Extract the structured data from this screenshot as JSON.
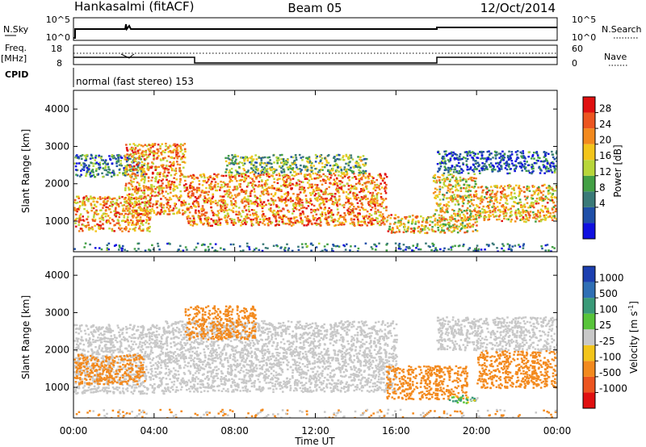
{
  "header": {
    "station": "Hankasalmi (fitACF)",
    "beam": "Beam 05",
    "date": "12/Oct/2014"
  },
  "panels": {
    "nsky": {
      "left_label": "N.Sky",
      "left_ticks": [
        "10^5",
        "10^0"
      ],
      "right_ticks": [
        "10^5",
        "10^0"
      ],
      "right_label": "N.Search"
    },
    "freq": {
      "left_label_1": "Freq.",
      "left_label_2": "[MHz]",
      "left_ticks": [
        "18",
        "8"
      ],
      "right_ticks": [
        "60",
        "0"
      ],
      "right_label": "Nave"
    },
    "cpid": {
      "label": "CPID",
      "value": "normal (fast stereo) 153"
    }
  },
  "axes": {
    "ylabel": "Slant Range [km]",
    "xlabel": "Time UT",
    "yticks": [
      "4000",
      "3000",
      "2000",
      "1000"
    ],
    "xticks": [
      "00:00",
      "04:00",
      "08:00",
      "12:00",
      "16:00",
      "20:00",
      "00:00"
    ]
  },
  "colors": {
    "power": [
      "#1010e0",
      "#1f4fa8",
      "#3a7a78",
      "#43a045",
      "#b8d63a",
      "#f3c51b",
      "#f38a1e",
      "#ec5520",
      "#e01010"
    ],
    "velocity": [
      "#1c3fb0",
      "#2f6fb5",
      "#3a9a78",
      "#58c43a",
      "#c8c8c8",
      "#f3c51b",
      "#f38a1e",
      "#ec5520",
      "#e01010"
    ],
    "ground": "#c8c8c8"
  },
  "colorbars": {
    "power": {
      "label": "Power [dB]",
      "ticks": [
        "28",
        "24",
        "20",
        "16",
        "12",
        "8",
        "4"
      ]
    },
    "velocity": {
      "label": "Velocity",
      "unit": "[m s",
      "unit_exp": "-1",
      "unit_close": "]",
      "ticks": [
        "1000",
        "500",
        "100",
        "25",
        "-25",
        "-100",
        "-500",
        "-1000"
      ]
    }
  },
  "chart_data": [
    {
      "type": "heatmap",
      "name": "power",
      "x_range_hours": [
        0,
        24
      ],
      "y_range_km": [
        180,
        4500
      ],
      "colorscale_ticks_db": [
        4,
        8,
        12,
        16,
        20,
        24,
        28
      ],
      "echo_regions": [
        {
          "start_h": 0.0,
          "end_h": 3.8,
          "low_km": 750,
          "high_km": 1700,
          "value_db": 24
        },
        {
          "start_h": 0.0,
          "end_h": 3.5,
          "low_km": 2200,
          "high_km": 2800,
          "value_db": 10
        },
        {
          "start_h": 2.5,
          "end_h": 5.5,
          "low_km": 1200,
          "high_km": 3100,
          "value_db": 24
        },
        {
          "start_h": 5.5,
          "end_h": 15.5,
          "low_km": 900,
          "high_km": 2300,
          "value_db": 25
        },
        {
          "start_h": 7.5,
          "end_h": 14.5,
          "low_km": 2300,
          "high_km": 2800,
          "value_db": 15
        },
        {
          "start_h": 15.5,
          "end_h": 17.8,
          "low_km": 700,
          "high_km": 1200,
          "value_db": 22
        },
        {
          "start_h": 17.8,
          "end_h": 20.0,
          "low_km": 700,
          "high_km": 2300,
          "value_db": 20
        },
        {
          "start_h": 20.0,
          "end_h": 24.0,
          "low_km": 1000,
          "high_km": 2000,
          "value_db": 22
        },
        {
          "start_h": 18.0,
          "end_h": 24.0,
          "low_km": 2300,
          "high_km": 2900,
          "value_db": 8
        }
      ]
    },
    {
      "type": "heatmap",
      "name": "velocity",
      "x_range_hours": [
        0,
        24
      ],
      "y_range_km": [
        180,
        4500
      ],
      "colorscale_ticks_ms": [
        1000,
        500,
        100,
        25,
        -25,
        -100,
        -500,
        -1000
      ],
      "echo_regions": [
        {
          "start_h": 0.0,
          "end_h": 4.5,
          "low_km": 850,
          "high_km": 2700,
          "value": "ground"
        },
        {
          "start_h": 0.0,
          "end_h": 3.5,
          "low_km": 1100,
          "high_km": 1900,
          "value_ms": -300
        },
        {
          "start_h": 4.5,
          "end_h": 16.0,
          "low_km": 900,
          "high_km": 2800,
          "value": "ground"
        },
        {
          "start_h": 5.5,
          "end_h": 9.0,
          "low_km": 2300,
          "high_km": 3200,
          "value_ms": -300
        },
        {
          "start_h": 15.5,
          "end_h": 19.5,
          "low_km": 700,
          "high_km": 1600,
          "value_ms": -300
        },
        {
          "start_h": 18.5,
          "end_h": 20.0,
          "low_km": 600,
          "high_km": 800,
          "value_ms": 100
        },
        {
          "start_h": 18.0,
          "end_h": 24.0,
          "low_km": 2000,
          "high_km": 2900,
          "value": "ground"
        },
        {
          "start_h": 20.0,
          "end_h": 24.0,
          "low_km": 1000,
          "high_km": 2000,
          "value_ms": -250
        }
      ]
    }
  ]
}
